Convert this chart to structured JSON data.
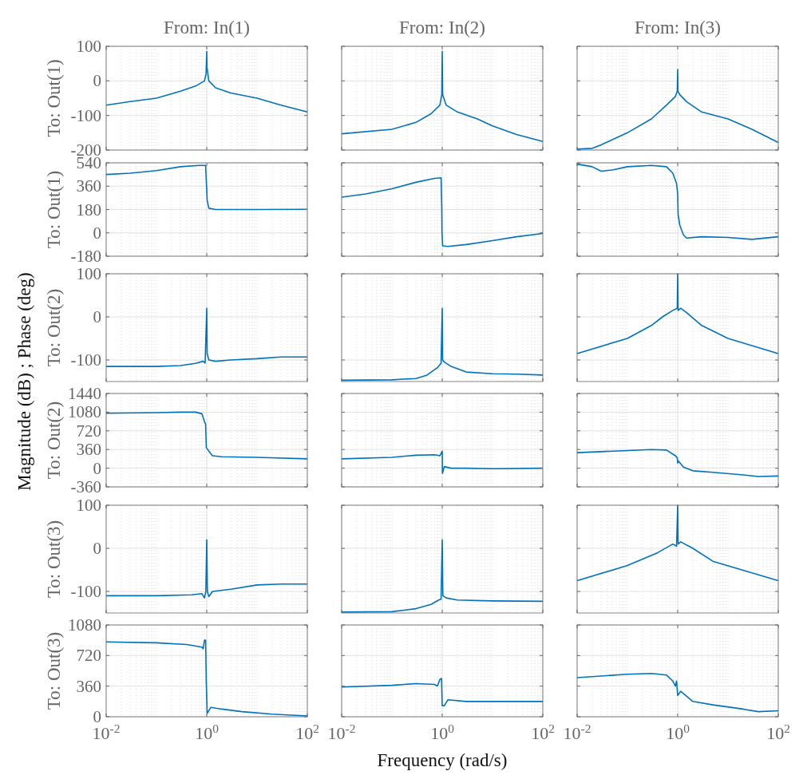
{
  "chart_data": [
    {
      "type": "line",
      "title": "From: In(1)",
      "ylabel": "To: Out(1)",
      "annotations": [
        "Magnitude (dB) ; Phase (deg)"
      ],
      "x": [
        0.01,
        0.03,
        0.1,
        0.3,
        0.6,
        0.9,
        0.97,
        1,
        1.01,
        1.1,
        1.5,
        3,
        10,
        30,
        100
      ],
      "values": [
        -70,
        -60,
        -50,
        -30,
        -15,
        0,
        20,
        85,
        40,
        0,
        -20,
        -35,
        -50,
        -70,
        -90
      ],
      "color": "#0072bd",
      "xlim": [
        0.01,
        100
      ],
      "xticks": [
        {
          "value": 0.01,
          "label": null
        },
        {
          "value": 1,
          "label": null
        },
        {
          "value": 100,
          "label": null
        }
      ],
      "ylim": [
        -200,
        100
      ],
      "yticks": [
        -200,
        -100,
        0,
        100
      ],
      "log": "x",
      "grid": true,
      "tick_labels": "y"
    },
    {
      "type": "line",
      "title": "From: In(2)",
      "x": [
        0.01,
        0.1,
        0.3,
        0.6,
        0.9,
        0.98,
        1,
        1.02,
        1.2,
        2,
        5,
        10,
        30,
        100
      ],
      "values": [
        -153,
        -140,
        -120,
        -95,
        -70,
        -40,
        85,
        -40,
        -70,
        -90,
        -110,
        -130,
        -155,
        -175
      ],
      "color": "#0072bd",
      "xlim": [
        0.01,
        100
      ],
      "xticks": [
        {
          "value": 0.01,
          "label": null
        },
        {
          "value": 1,
          "label": null
        },
        {
          "value": 100,
          "label": null
        }
      ],
      "ylim": [
        -200,
        100
      ],
      "yticks": [
        -200,
        -100,
        0,
        100
      ],
      "log": "x",
      "grid": true,
      "tick_labels": false
    },
    {
      "type": "line",
      "title": "From: In(3)",
      "x": [
        0.01,
        0.02,
        0.03,
        0.1,
        0.3,
        0.6,
        0.9,
        0.98,
        1,
        1.01,
        1.1,
        1.5,
        3,
        10,
        30,
        100
      ],
      "values": [
        -197,
        -195,
        -185,
        -150,
        -110,
        -70,
        -45,
        -30,
        33,
        -30,
        -40,
        -60,
        -90,
        -110,
        -140,
        -178
      ],
      "color": "#0072bd",
      "xlim": [
        0.01,
        100
      ],
      "xticks": [
        {
          "value": 0.01,
          "label": null
        },
        {
          "value": 1,
          "label": null
        },
        {
          "value": 100,
          "label": null
        }
      ],
      "ylim": [
        -200,
        100
      ],
      "yticks": [
        -200,
        -100,
        0,
        100
      ],
      "log": "x",
      "grid": true,
      "tick_labels": false
    },
    {
      "type": "line",
      "ylabel": "To: Out(1)",
      "x": [
        0.01,
        0.03,
        0.1,
        0.3,
        0.7,
        0.95,
        0.98,
        1,
        1.02,
        1.1,
        1.5,
        10,
        100
      ],
      "values": [
        450,
        460,
        480,
        510,
        520,
        520,
        400,
        330,
        250,
        190,
        180,
        180,
        182
      ],
      "color": "#0072bd",
      "xlim": [
        0.01,
        100
      ],
      "xticks": [
        {
          "value": 0.01,
          "label": null
        },
        {
          "value": 1,
          "label": null
        },
        {
          "value": 100,
          "label": null
        }
      ],
      "ylim": [
        -180,
        540
      ],
      "yticks": [
        -180,
        0,
        180,
        360,
        540
      ],
      "log": "x",
      "grid": true,
      "tick_labels": "y"
    },
    {
      "type": "line",
      "x": [
        0.01,
        0.03,
        0.1,
        0.3,
        0.7,
        0.95,
        0.98,
        0.99,
        1.02,
        1.3,
        3,
        10,
        30,
        100
      ],
      "values": [
        275,
        300,
        340,
        390,
        420,
        425,
        200,
        0,
        -100,
        -105,
        -90,
        -60,
        -30,
        -5
      ],
      "color": "#0072bd",
      "xlim": [
        0.01,
        100
      ],
      "xticks": [
        {
          "value": 0.01,
          "label": null
        },
        {
          "value": 1,
          "label": null
        },
        {
          "value": 100,
          "label": null
        }
      ],
      "ylim": [
        -180,
        540
      ],
      "yticks": [
        -180,
        0,
        180,
        360,
        540
      ],
      "log": "x",
      "grid": true,
      "tick_labels": false
    },
    {
      "type": "line",
      "x": [
        0.01,
        0.02,
        0.03,
        0.05,
        0.1,
        0.3,
        0.6,
        0.8,
        0.95,
        1,
        1.02,
        1.1,
        1.3,
        1.5,
        3,
        10,
        30,
        100
      ],
      "values": [
        530,
        510,
        475,
        485,
        510,
        520,
        510,
        460,
        380,
        300,
        140,
        60,
        -15,
        -40,
        -30,
        -35,
        -50,
        -30
      ],
      "color": "#0072bd",
      "xlim": [
        0.01,
        100
      ],
      "xticks": [
        {
          "value": 0.01,
          "label": null
        },
        {
          "value": 1,
          "label": null
        },
        {
          "value": 100,
          "label": null
        }
      ],
      "ylim": [
        -180,
        540
      ],
      "yticks": [
        -180,
        0,
        180,
        360,
        540
      ],
      "log": "x",
      "grid": true,
      "tick_labels": false
    },
    {
      "type": "line",
      "ylabel": "To: Out(2)",
      "x": [
        0.01,
        0.1,
        0.3,
        0.6,
        0.85,
        0.93,
        1,
        1.02,
        1.1,
        1.5,
        3,
        10,
        30,
        100
      ],
      "values": [
        -115,
        -115,
        -113,
        -108,
        -103,
        -107,
        20,
        -85,
        -100,
        -103,
        -100,
        -97,
        -93,
        -93
      ],
      "color": "#0072bd",
      "xlim": [
        0.01,
        100
      ],
      "xticks": [
        {
          "value": 0.01,
          "label": null
        },
        {
          "value": 1,
          "label": null
        },
        {
          "value": 100,
          "label": null
        }
      ],
      "ylim": [
        -150,
        100
      ],
      "yticks": [
        -100,
        0,
        100
      ],
      "log": "x",
      "grid": true,
      "tick_labels": "y"
    },
    {
      "type": "line",
      "x": [
        0.01,
        0.1,
        0.3,
        0.5,
        0.8,
        0.95,
        1,
        1.02,
        1.1,
        1.5,
        3,
        10,
        30,
        100
      ],
      "values": [
        -147,
        -146,
        -143,
        -135,
        -118,
        -108,
        20,
        -100,
        -105,
        -115,
        -128,
        -132,
        -133,
        -135
      ],
      "color": "#0072bd",
      "xlim": [
        0.01,
        100
      ],
      "xticks": [
        {
          "value": 0.01,
          "label": null
        },
        {
          "value": 1,
          "label": null
        },
        {
          "value": 100,
          "label": null
        }
      ],
      "ylim": [
        -150,
        100
      ],
      "yticks": [
        -100,
        0,
        100
      ],
      "log": "x",
      "grid": true,
      "tick_labels": false
    },
    {
      "type": "line",
      "x": [
        0.01,
        0.1,
        0.3,
        0.5,
        0.8,
        0.98,
        1,
        1.02,
        1.15,
        1.5,
        3,
        10,
        100
      ],
      "values": [
        -85,
        -50,
        -20,
        0,
        15,
        20,
        100,
        15,
        20,
        10,
        -20,
        -50,
        -85
      ],
      "color": "#0072bd",
      "xlim": [
        0.01,
        100
      ],
      "xticks": [
        {
          "value": 0.01,
          "label": null
        },
        {
          "value": 1,
          "label": null
        },
        {
          "value": 100,
          "label": null
        }
      ],
      "ylim": [
        -150,
        100
      ],
      "yticks": [
        -100,
        0,
        100
      ],
      "log": "x",
      "grid": true,
      "tick_labels": false
    },
    {
      "type": "line",
      "ylabel": "To: Out(2)",
      "x": [
        0.01,
        0.1,
        0.3,
        0.6,
        0.8,
        0.9,
        0.95,
        0.98,
        1.1,
        1.3,
        2,
        10,
        100
      ],
      "values": [
        1060,
        1070,
        1080,
        1080,
        1050,
        900,
        850,
        400,
        330,
        240,
        220,
        210,
        180
      ],
      "color": "#0072bd",
      "xlim": [
        0.01,
        100
      ],
      "xticks": [
        {
          "value": 0.01,
          "label": null
        },
        {
          "value": 1,
          "label": null
        },
        {
          "value": 100,
          "label": null
        }
      ],
      "ylim": [
        -360,
        1440
      ],
      "yticks": [
        -360,
        0,
        360,
        720,
        1080,
        1440
      ],
      "log": "x",
      "grid": true,
      "tick_labels": "y"
    },
    {
      "type": "line",
      "x": [
        0.01,
        0.1,
        0.3,
        0.7,
        0.9,
        1,
        1.01,
        1.1,
        1.5,
        3,
        10,
        100
      ],
      "values": [
        180,
        210,
        250,
        260,
        240,
        330,
        -100,
        30,
        0,
        0,
        -10,
        0
      ],
      "color": "#0072bd",
      "xlim": [
        0.01,
        100
      ],
      "xticks": [
        {
          "value": 0.01,
          "label": null
        },
        {
          "value": 1,
          "label": null
        },
        {
          "value": 100,
          "label": null
        }
      ],
      "ylim": [
        -360,
        1440
      ],
      "yticks": [
        -360,
        0,
        360,
        720,
        1080,
        1440
      ],
      "log": "x",
      "grid": true,
      "tick_labels": false
    },
    {
      "type": "line",
      "x": [
        0.01,
        0.1,
        0.3,
        0.6,
        0.9,
        0.98,
        1,
        1.03,
        1.3,
        2,
        5,
        20,
        40,
        100
      ],
      "values": [
        300,
        340,
        360,
        350,
        240,
        200,
        100,
        140,
        20,
        -50,
        -80,
        -130,
        -160,
        -150
      ],
      "color": "#0072bd",
      "xlim": [
        0.01,
        100
      ],
      "xticks": [
        {
          "value": 0.01,
          "label": null
        },
        {
          "value": 1,
          "label": null
        },
        {
          "value": 100,
          "label": null
        }
      ],
      "ylim": [
        -360,
        1440
      ],
      "yticks": [
        -360,
        0,
        360,
        720,
        1080,
        1440
      ],
      "log": "x",
      "grid": true,
      "tick_labels": false
    },
    {
      "type": "line",
      "ylabel": "To: Out(3)",
      "x": [
        0.01,
        0.1,
        0.5,
        0.8,
        0.9,
        0.96,
        1,
        1.03,
        1.1,
        1.3,
        3,
        10,
        30,
        100
      ],
      "values": [
        -110,
        -110,
        -108,
        -105,
        -115,
        -100,
        20,
        -100,
        -112,
        -100,
        -95,
        -85,
        -83,
        -83
      ],
      "color": "#0072bd",
      "xlim": [
        0.01,
        100
      ],
      "xticks": [
        {
          "value": 0.01,
          "label": null
        },
        {
          "value": 1,
          "label": null
        },
        {
          "value": 100,
          "label": null
        }
      ],
      "ylim": [
        -150,
        100
      ],
      "yticks": [
        -100,
        0,
        100
      ],
      "log": "x",
      "grid": true,
      "tick_labels": "y"
    },
    {
      "type": "line",
      "x": [
        0.01,
        0.1,
        0.3,
        0.6,
        0.85,
        0.95,
        1,
        1.03,
        1.2,
        2,
        10,
        100
      ],
      "values": [
        -148,
        -147,
        -140,
        -130,
        -120,
        -118,
        20,
        -110,
        -115,
        -120,
        -122,
        -123
      ],
      "color": "#0072bd",
      "xlim": [
        0.01,
        100
      ],
      "xticks": [
        {
          "value": 0.01,
          "label": null
        },
        {
          "value": 1,
          "label": null
        },
        {
          "value": 100,
          "label": null
        }
      ],
      "ylim": [
        -150,
        100
      ],
      "yticks": [
        -100,
        0,
        100
      ],
      "log": "x",
      "grid": true,
      "tick_labels": false
    },
    {
      "type": "line",
      "x": [
        0.01,
        0.1,
        0.4,
        0.8,
        0.95,
        1,
        1.02,
        1.15,
        2,
        5,
        100
      ],
      "values": [
        -75,
        -40,
        -10,
        10,
        5,
        100,
        10,
        15,
        0,
        -30,
        -75
      ],
      "color": "#0072bd",
      "xlim": [
        0.01,
        100
      ],
      "xticks": [
        {
          "value": 0.01,
          "label": null
        },
        {
          "value": 1,
          "label": null
        },
        {
          "value": 100,
          "label": null
        }
      ],
      "ylim": [
        -150,
        100
      ],
      "yticks": [
        -100,
        0,
        100
      ],
      "log": "x",
      "grid": true,
      "tick_labels": false
    },
    {
      "type": "line",
      "ylabel": "To: Out(3)",
      "x": [
        0.01,
        0.1,
        0.4,
        0.8,
        0.85,
        0.9,
        0.95,
        0.98,
        1.02,
        1.2,
        2,
        5,
        20,
        100
      ],
      "values": [
        880,
        870,
        850,
        820,
        800,
        900,
        900,
        400,
        40,
        110,
        90,
        60,
        30,
        10
      ],
      "color": "#0072bd",
      "xlim": [
        0.01,
        100
      ],
      "xticks": [
        {
          "value": 0.01,
          "label": "10$^{-2}$"
        },
        {
          "value": 1,
          "label": "10$^{0}$"
        },
        {
          "value": 100,
          "label": "10$^{2}$"
        }
      ],
      "ylim": [
        0,
        1080
      ],
      "yticks": [
        0,
        360,
        720,
        1080
      ],
      "log": "x",
      "grid": true
    },
    {
      "type": "line",
      "xlabel": "Frequency (rad/s)",
      "x": [
        0.01,
        0.1,
        0.3,
        0.7,
        0.8,
        0.9,
        0.97,
        1,
        1.1,
        1.3,
        3,
        10,
        100
      ],
      "values": [
        350,
        370,
        390,
        380,
        360,
        440,
        450,
        130,
        130,
        200,
        180,
        180,
        180
      ],
      "color": "#0072bd",
      "xlim": [
        0.01,
        100
      ],
      "xticks": [
        {
          "value": 0.01,
          "label": "10$^{-2}$"
        },
        {
          "value": 1,
          "label": "10$^{0}$"
        },
        {
          "value": 100,
          "label": "10$^{2}$"
        }
      ],
      "ylim": [
        0,
        1080
      ],
      "yticks": [
        0,
        360,
        720,
        1080
      ],
      "log": "x",
      "grid": true,
      "tick_labels": "x"
    },
    {
      "type": "line",
      "x": [
        0.01,
        0.1,
        0.3,
        0.6,
        0.8,
        0.9,
        0.95,
        1,
        1.15,
        2,
        5,
        20,
        40,
        100
      ],
      "values": [
        460,
        500,
        510,
        490,
        420,
        360,
        420,
        250,
        300,
        180,
        140,
        90,
        60,
        70
      ],
      "color": "#0072bd",
      "xlim": [
        0.01,
        100
      ],
      "xticks": [
        {
          "value": 0.01,
          "label": "10$^{-2}$"
        },
        {
          "value": 1,
          "label": "10$^{0}$"
        },
        {
          "value": 100,
          "label": "10$^{2}$"
        }
      ],
      "ylim": [
        0,
        1080
      ],
      "yticks": [
        0,
        360,
        720,
        1080
      ],
      "log": "x",
      "grid": true,
      "tick_labels": "x"
    }
  ]
}
